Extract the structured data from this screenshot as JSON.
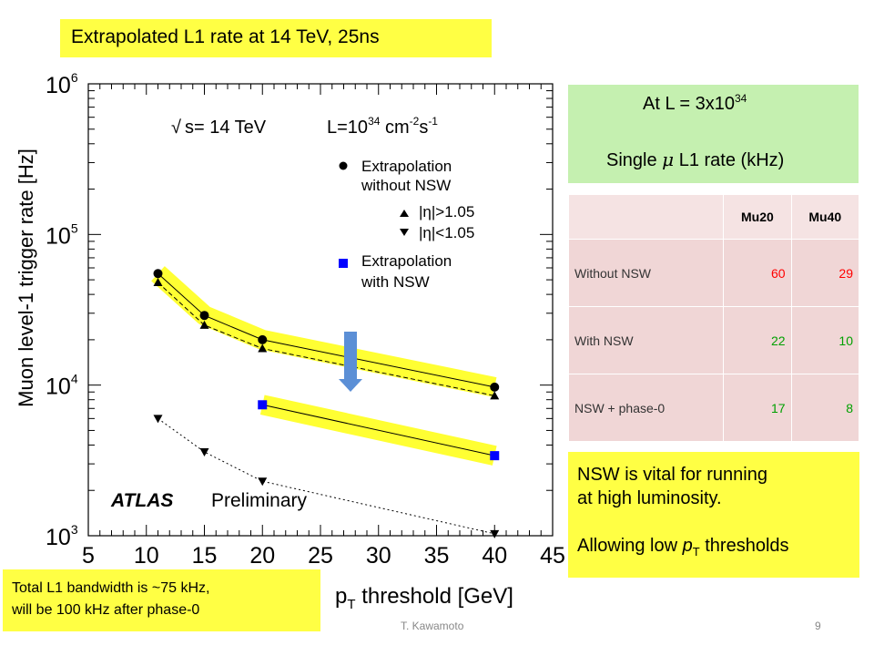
{
  "slide_title": "Extrapolated L1 rate   at 14 TeV,  25ns",
  "luminosity_box": {
    "line1_prefix": "At  L = 3x10",
    "line1_exp": "34",
    "line2_pre": "Single ",
    "line2_mu": "μ",
    "line2_post": " L1 rate  (kHz)"
  },
  "table": {
    "headers": [
      "",
      "Mu20",
      "Mu40"
    ],
    "rows": [
      {
        "label": "Without NSW",
        "mu20": "60",
        "mu40": "29",
        "color": "red"
      },
      {
        "label": "With NSW",
        "mu20": "22",
        "mu40": "10",
        "color": "green"
      },
      {
        "label": "NSW + phase-0",
        "mu20": "17",
        "mu40": "8",
        "color": "green"
      }
    ]
  },
  "note": {
    "line1": "NSW is vital for running",
    "line2": "at high luminosity.",
    "line3_pre": "Allowing low ",
    "line3_p": "p",
    "line3_sub": "T",
    "line3_post": " thresholds"
  },
  "bandwidth_note": {
    "line1": "Total L1 bandwidth is ~75 kHz,",
    "line2": "will be 100 kHz after phase-0"
  },
  "footer": {
    "author": "T. Kawamoto",
    "page": "9"
  },
  "chart_data": {
    "type": "line",
    "ylabel": "Muon level-1 trigger rate [Hz]",
    "xlabel_p": "p",
    "xlabel_sub": "T",
    "xlabel_rest": " threshold [GeV]",
    "x_ticks": [
      5,
      10,
      15,
      20,
      25,
      30,
      35,
      40,
      45
    ],
    "y_ticks": [
      {
        "base": "10",
        "exp": "3"
      },
      {
        "base": "10",
        "exp": "4"
      },
      {
        "base": "10",
        "exp": "5"
      },
      {
        "base": "10",
        "exp": "6"
      }
    ],
    "xlim": [
      5,
      45
    ],
    "ylim": [
      1000,
      1000000
    ],
    "yscale": "log",
    "energy_label": "s= 14 TeV",
    "lumi_label_pre": "L=10",
    "lumi_label_exp": "34",
    "lumi_label_unit": " cm",
    "lumi_label_unit_exp": "-2",
    "lumi_label_s": "s",
    "lumi_label_s_exp": "-1",
    "atlas_label": "ATLAS",
    "preliminary_label": "Preliminary",
    "legend": {
      "without_nsw_1": "Extrapolation",
      "without_nsw_2": "without NSW",
      "eta_high": "|η|>1.05",
      "eta_low": "|η|<1.05",
      "with_nsw_1": "Extrapolation",
      "with_nsw_2": "with NSW"
    },
    "series": [
      {
        "name": "without NSW",
        "marker": "circle",
        "band": true,
        "line": "solid",
        "x": [
          11,
          15,
          20,
          40
        ],
        "y": [
          55000,
          29000,
          20000,
          9700
        ]
      },
      {
        "name": "|η|>1.05",
        "marker": "triangle-up",
        "band": false,
        "line": "dashed",
        "x": [
          11,
          15,
          20,
          40
        ],
        "y": [
          48000,
          25000,
          17500,
          8500
        ]
      },
      {
        "name": "|η|<1.05",
        "marker": "triangle-down",
        "band": false,
        "line": "dotted",
        "x": [
          11,
          15,
          20,
          40
        ],
        "y": [
          6000,
          3600,
          2300,
          1030
        ]
      },
      {
        "name": "with NSW",
        "marker": "square",
        "band": true,
        "line": "solid",
        "x": [
          20,
          40
        ],
        "y": [
          7400,
          3400
        ]
      }
    ],
    "colors": {
      "band": "#ffff33",
      "without_nsw_marker": "#000000",
      "with_nsw_marker": "#0000ff",
      "arrow": "#5b8fd6"
    }
  }
}
